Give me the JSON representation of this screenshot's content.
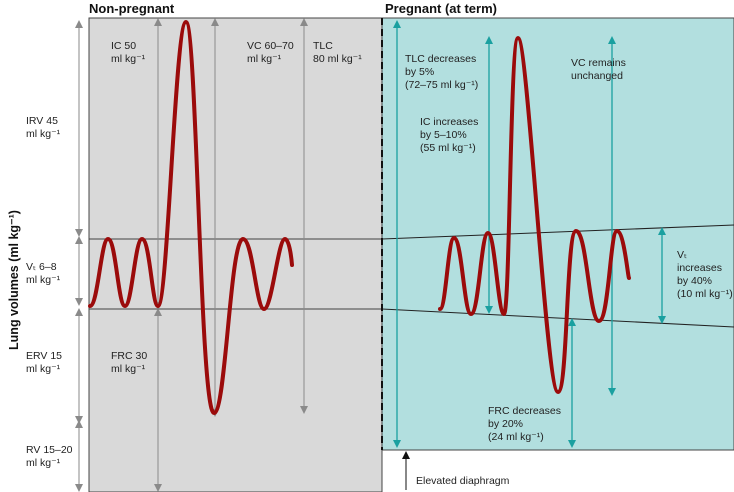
{
  "titles": {
    "left": "Non-pregnant",
    "right": "Pregnant (at term)"
  },
  "y_axis_label": "Lung volumes (ml kg⁻¹)",
  "left_labels": {
    "irv": [
      "IRV 45",
      "ml kg⁻¹"
    ],
    "vt": [
      "Vₜ 6–8",
      "ml kg⁻¹"
    ],
    "erv": [
      "ERV 15",
      "ml kg⁻¹"
    ],
    "rv": [
      "RV 15–20",
      "ml kg⁻¹"
    ]
  },
  "panel_labels": {
    "ic": [
      "IC 50",
      "ml kg⁻¹"
    ],
    "vc": [
      "VC 60–70",
      "ml kg⁻¹"
    ],
    "tlc": [
      "TLC",
      "80 ml kg⁻¹"
    ],
    "frc": [
      "FRC 30",
      "ml kg⁻¹"
    ]
  },
  "pregnant_labels": {
    "tlc": [
      "TLC decreases",
      "by 5%",
      "(72–75 ml kg⁻¹)"
    ],
    "ic": [
      "IC increases",
      "by 5–10%",
      "(55 ml kg⁻¹)"
    ],
    "vc": [
      "VC remains",
      "unchanged"
    ],
    "frc": [
      "FRC decreases",
      "by 20%",
      "(24 ml kg⁻¹)"
    ],
    "vt": [
      "Vₜ",
      "increases",
      "by 40%",
      "(10 ml kg⁻¹)"
    ]
  },
  "annotation": "Elevated diaphragm",
  "colors": {
    "left_panel": "#d9d9d9",
    "right_panel": "#b2dfdf",
    "trace": "#9b0b0b",
    "teal_arrow": "#1aa0a0",
    "grey_arrow": "#8a8a8a"
  }
}
